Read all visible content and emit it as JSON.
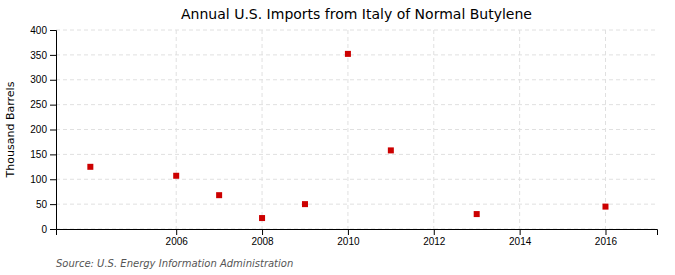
{
  "chart_data": {
    "type": "scatter",
    "title": "Annual U.S. Imports from Italy of Normal Butylene",
    "ylabel": "Thousand Barrels",
    "source": "Source: U.S. Energy Information Administration",
    "x": [
      2004,
      2006,
      2007,
      2008,
      2009,
      2010,
      2011,
      2013,
      2016
    ],
    "values": [
      125,
      107,
      68,
      22,
      50,
      352,
      158,
      30,
      45
    ],
    "color": "#cc0000",
    "marker": "square",
    "xlim": [
      2003.2,
      2017.2
    ],
    "xticks": [
      2006,
      2008,
      2010,
      2012,
      2014,
      2016
    ],
    "ylim": [
      0,
      400
    ],
    "yticks": [
      0,
      50,
      100,
      150,
      200,
      250,
      300,
      350,
      400
    ],
    "grid": true
  }
}
